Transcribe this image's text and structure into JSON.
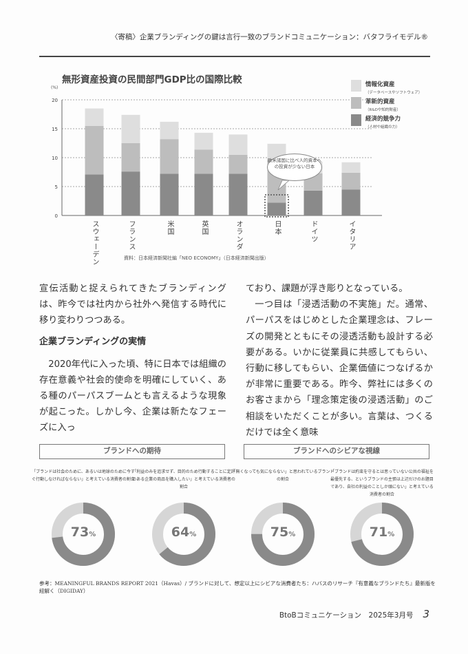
{
  "header": {
    "running_title": "〈寄稿〉企業ブランディングの鍵は言行一致のブランドコミュニケーション：バタフライモデル®"
  },
  "chart_data": {
    "type": "bar",
    "stacked": true,
    "title": "無形資産投資の民間部門GDP比の国際比較",
    "ylabel": "(%)",
    "ylim": [
      0,
      20
    ],
    "yticks": [
      0,
      5,
      10,
      15,
      20
    ],
    "grid": true,
    "categories": [
      "スウェーデン",
      "フランス",
      "米国",
      "英国",
      "オランダ",
      "日本",
      "ドイツ",
      "イタリア"
    ],
    "series": [
      {
        "name": "経済的競争力",
        "note": "（人材や組織の力）",
        "color": "#8a8a8a",
        "values": [
          7.1,
          7.6,
          7.2,
          7.2,
          7.2,
          2.2,
          4.3,
          4.5
        ]
      },
      {
        "name": "革新的資産",
        "note": "（R&Dや知的財産）",
        "color": "#bdbdbd",
        "values": [
          8.4,
          4.9,
          6.0,
          4.2,
          3.3,
          7.4,
          3.0,
          2.9
        ]
      },
      {
        "name": "情報化資産",
        "note": "（データベースやソフトウェア）",
        "color": "#dedede",
        "values": [
          3.0,
          4.9,
          3.0,
          2.9,
          3.5,
          2.8,
          2.0,
          1.8
        ]
      }
    ],
    "legend_position": "top-right",
    "annotation": "欧米諸国に比べ人的資本への投資が少ない日本",
    "source": "資料：日本経済新聞社編「NEO ECONOMY」（日本経済新聞出版）"
  },
  "body": {
    "left_intro": "宣伝活動と捉えられてきたブランディングは、昨今では社内から社外へ発信する時代に移り変わりつつある。",
    "heading": "企業ブランディングの実情",
    "left_para": "2020年代に入った頃、特に日本では組織の存在意義や社会的使命を明確にしていく、ある種のパーパスブームとも言えるような現象が起こった。しかし今、企業は新たなフェーズに入っ",
    "right_cont": "ており、課題が浮き彫りとなっている。",
    "right_para": "一つ目は「浸透活動の不実施」だ。通常、パーパスをはじめとした企業理念は、フレーズの開発とともにその浸透活動も設計する必要がある。いかに従業員に共感してもらい、行動に移してもらい、企業価値につなげるかが非常に重要である。昨今、弊社には多くのお客さまから「理念策定後の浸透活動」のご相談をいただくことが多い。言葉は、つくるだけでは全く意味"
  },
  "infographic": {
    "box_left": "ブランドへの期待",
    "box_right": "ブランドへのシビアな視線",
    "dark": "#8a8a8a",
    "light": "#d6d6d6",
    "donuts": [
      {
        "caption": "「ブランドは社会のために、あるいは地球のために今すぐ行動しなければならない」と考えている消費者の割合",
        "value": 73,
        "unit": "%"
      },
      {
        "caption": "「利益のみを追求せず、目的のため行動することに定評のある企業の商品を購入したい」と考えている消費者の割合",
        "value": 64,
        "unit": "%"
      },
      {
        "caption": "「無くなっても気にならない」と思われているブランドの割合",
        "value": 75,
        "unit": "%"
      },
      {
        "caption": "「ブランドは約束を守るとは思っていない公共の福祉を最優先する、というブランドの主張は上辺だけのお題目であり、自社の利益のことしか頭にない」と考えている消費者の割合",
        "value": 71,
        "unit": "%"
      }
    ]
  },
  "reference": "参考：MEANINGFUL BRANDS REPORT 2021（Havas）/ ブランドに対して、想定以上にシビアな消費者たち：ハバスのリサーチ『有意義なブランドたち』最新版を紐解く（DIGIDAY）",
  "footer": {
    "magazine": "BtoBコミュニケーション　2025年3月号",
    "page": "3"
  }
}
